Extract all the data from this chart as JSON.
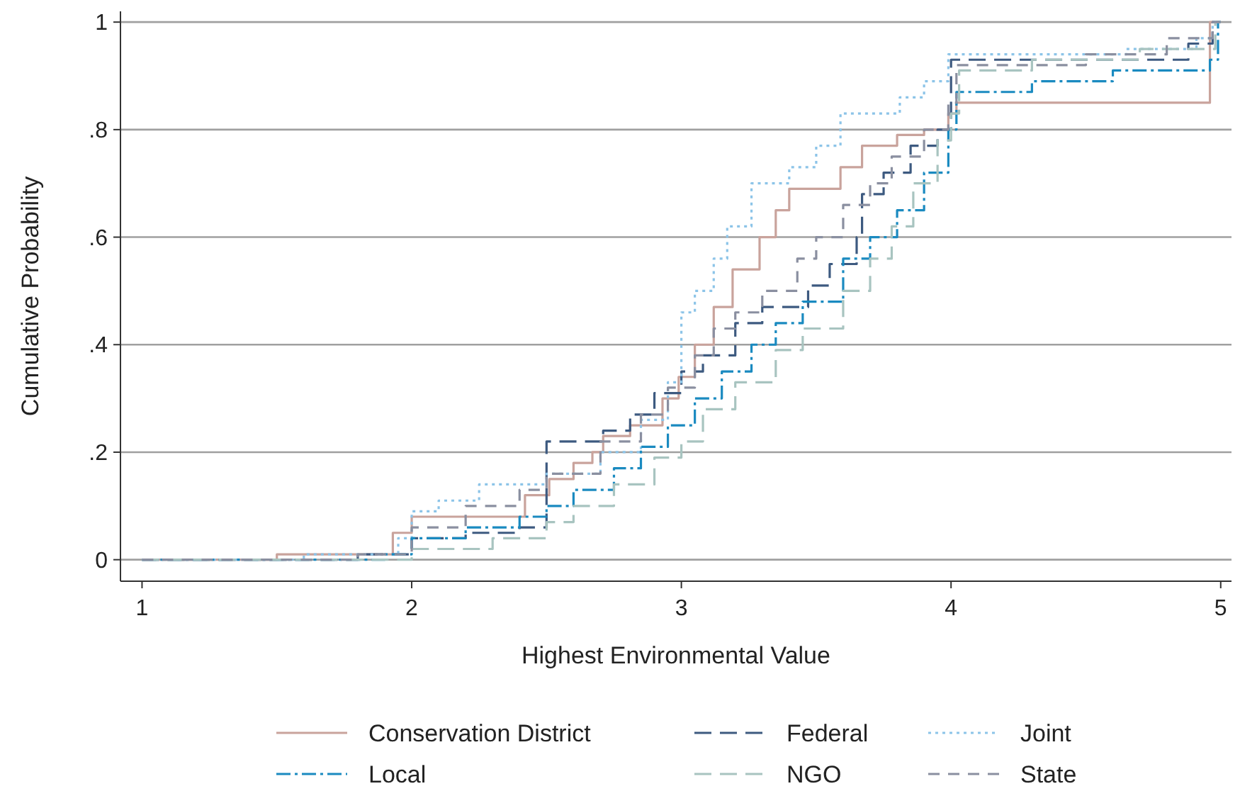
{
  "chart_data": {
    "type": "step",
    "xlabel": "Highest Environmental Value",
    "ylabel": "Cumulative Probability",
    "xlim": [
      0.92,
      5.04
    ],
    "ylim": [
      -0.04,
      1.02
    ],
    "xticks": [
      1,
      2,
      3,
      4,
      5
    ],
    "yticks": [
      0,
      {
        "value": 0.2,
        "label": ".2"
      },
      {
        "value": 0.4,
        "label": ".4"
      },
      {
        "value": 0.6,
        "label": ".6"
      },
      {
        "value": 0.8,
        "label": ".8"
      },
      1
    ],
    "grid": "y",
    "legend": "bottom",
    "marker": "none",
    "series": [
      {
        "name": "Conservation District",
        "color": "#c9a39c",
        "line_style": "solid",
        "x": [
          1,
          1.5,
          1.93,
          2.0,
          2.42,
          2.51,
          2.6,
          2.67,
          2.71,
          2.81,
          2.93,
          2.99,
          3.05,
          3.12,
          3.19,
          3.29,
          3.35,
          3.4,
          3.59,
          3.67,
          3.8,
          3.9,
          3.99,
          4.02,
          4.96,
          5
        ],
        "values": [
          0,
          0.01,
          0.05,
          0.08,
          0.12,
          0.15,
          0.18,
          0.2,
          0.23,
          0.25,
          0.3,
          0.34,
          0.4,
          0.47,
          0.54,
          0.6,
          0.65,
          0.69,
          0.73,
          0.77,
          0.79,
          0.8,
          0.83,
          0.85,
          1,
          1
        ]
      },
      {
        "name": "Federal",
        "color": "#3d5a80",
        "line_style": "dashed",
        "x": [
          1,
          1.8,
          2.0,
          2.2,
          2.4,
          2.5,
          2.71,
          2.81,
          2.9,
          3.0,
          3.08,
          3.2,
          3.3,
          3.47,
          3.55,
          3.65,
          3.67,
          3.75,
          3.85,
          3.95,
          4.0,
          4.88,
          4.97,
          5
        ],
        "values": [
          0,
          0.01,
          0.04,
          0.05,
          0.06,
          0.22,
          0.24,
          0.27,
          0.31,
          0.35,
          0.38,
          0.44,
          0.47,
          0.51,
          0.55,
          0.6,
          0.68,
          0.72,
          0.77,
          0.8,
          0.93,
          0.96,
          1,
          1
        ]
      },
      {
        "name": "Joint",
        "color": "#8cc4e8",
        "line_style": "dotted",
        "x": [
          1,
          1.6,
          1.95,
          2.0,
          2.1,
          2.25,
          2.5,
          2.7,
          2.85,
          2.95,
          3.0,
          3.05,
          3.12,
          3.17,
          3.26,
          3.4,
          3.5,
          3.59,
          3.81,
          3.9,
          3.99,
          4.65,
          4.91,
          4.97,
          5
        ],
        "values": [
          0,
          0.01,
          0.04,
          0.09,
          0.11,
          0.14,
          0.16,
          0.2,
          0.26,
          0.33,
          0.46,
          0.5,
          0.56,
          0.62,
          0.7,
          0.73,
          0.77,
          0.83,
          0.86,
          0.89,
          0.94,
          0.95,
          0.97,
          1,
          1
        ]
      },
      {
        "name": "Local",
        "color": "#1a8ac0",
        "line_style": "dashed",
        "x": [
          1,
          1.9,
          2.0,
          2.2,
          2.4,
          2.5,
          2.6,
          2.75,
          2.85,
          2.95,
          3.05,
          3.15,
          3.26,
          3.35,
          3.45,
          3.6,
          3.7,
          3.8,
          3.9,
          3.99,
          4.02,
          4.3,
          4.6,
          4.96,
          4.99,
          5
        ],
        "values": [
          0,
          0.01,
          0.04,
          0.06,
          0.08,
          0.1,
          0.13,
          0.17,
          0.21,
          0.25,
          0.3,
          0.35,
          0.4,
          0.44,
          0.48,
          0.56,
          0.6,
          0.65,
          0.72,
          0.8,
          0.87,
          0.89,
          0.91,
          0.93,
          1,
          1
        ]
      },
      {
        "name": "NGO",
        "color": "#a8c4c0",
        "line_style": "dashed",
        "x": [
          1,
          2.0,
          2.3,
          2.5,
          2.6,
          2.75,
          2.9,
          3.0,
          3.08,
          3.2,
          3.35,
          3.45,
          3.6,
          3.7,
          3.78,
          3.86,
          3.95,
          4.0,
          4.03,
          4.3,
          4.7,
          4.98,
          5
        ],
        "values": [
          0,
          0.02,
          0.04,
          0.07,
          0.1,
          0.14,
          0.19,
          0.22,
          0.28,
          0.33,
          0.39,
          0.43,
          0.5,
          0.56,
          0.62,
          0.7,
          0.78,
          0.83,
          0.91,
          0.93,
          0.95,
          1,
          1
        ]
      },
      {
        "name": "State",
        "color": "#8a8fa0",
        "line_style": "dashed",
        "x": [
          1,
          1.8,
          2.0,
          2.2,
          2.4,
          2.5,
          2.7,
          2.85,
          2.95,
          3.05,
          3.12,
          3.2,
          3.3,
          3.43,
          3.5,
          3.6,
          3.7,
          3.78,
          3.9,
          3.99,
          4.02,
          4.5,
          4.8,
          4.97,
          5
        ],
        "values": [
          0,
          0.01,
          0.06,
          0.1,
          0.13,
          0.16,
          0.22,
          0.27,
          0.32,
          0.38,
          0.43,
          0.46,
          0.5,
          0.56,
          0.6,
          0.66,
          0.7,
          0.75,
          0.8,
          0.85,
          0.92,
          0.94,
          0.97,
          1,
          1
        ]
      }
    ]
  }
}
